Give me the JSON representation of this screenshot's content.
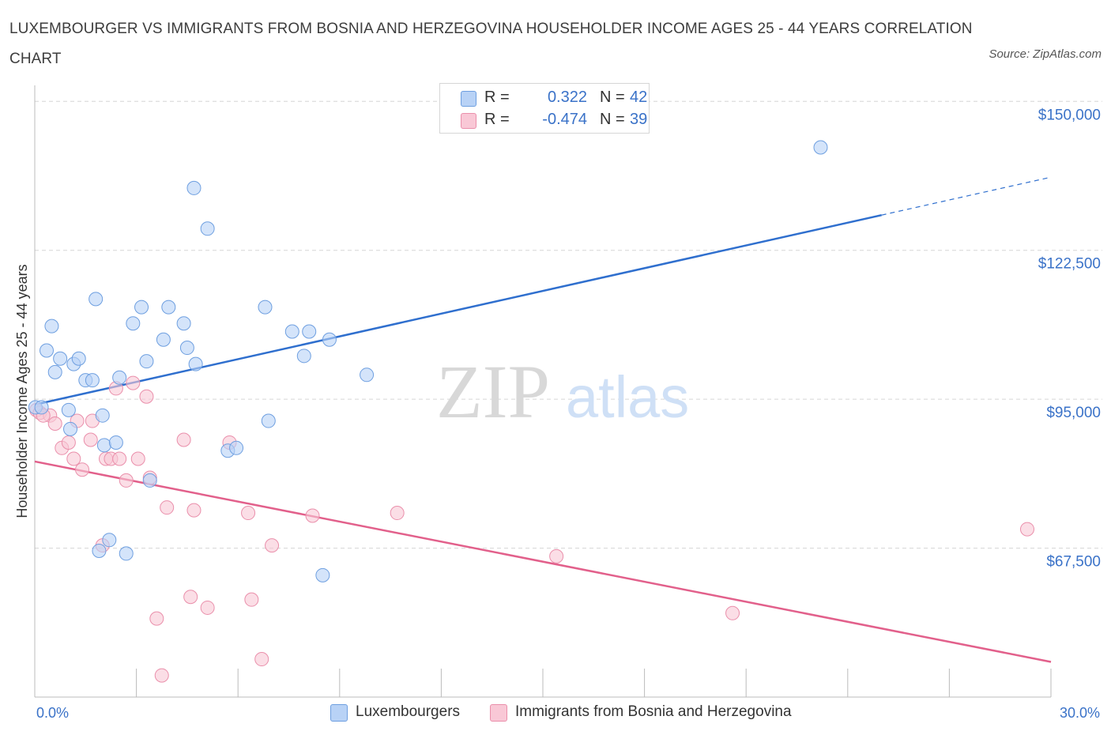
{
  "title": "LUXEMBOURGER VS IMMIGRANTS FROM BOSNIA AND HERZEGOVINA HOUSEHOLDER INCOME AGES 25 - 44 YEARS CORRELATION CHART",
  "source": "Source: ZipAtlas.com",
  "watermark": {
    "zip": "ZIP",
    "atlas": "atlas"
  },
  "legend_top": [
    {
      "r_label": "R =",
      "r_value": "0.322",
      "n_label": "N =",
      "n_value": "42"
    },
    {
      "r_label": "R =",
      "r_value": "-0.474",
      "n_label": "N =",
      "n_value": "39"
    }
  ],
  "legend_bottom": [
    {
      "label": "Luxembourgers"
    },
    {
      "label": "Immigrants from Bosnia and Herzegovina"
    }
  ],
  "colors": {
    "blue_fill": "#b8d2f6",
    "blue_stroke": "#6e9fe0",
    "blue_line": "#2f6fce",
    "pink_fill": "#f9c8d6",
    "pink_stroke": "#ea8fab",
    "pink_line": "#e2608b",
    "grid": "#d5d5d5",
    "axis": "#bbbbbb",
    "tick_text": "#3a72c8"
  },
  "chart_data": {
    "type": "scatter",
    "title": "LUXEMBOURGER VS IMMIGRANTS FROM BOSNIA AND HERZEGOVINA HOUSEHOLDER INCOME AGES 25 - 44 YEARS CORRELATION CHART",
    "xlabel": "",
    "ylabel": "Householder Income Ages 25 - 44 years",
    "x_tick_labels": [
      "0.0%",
      "30.0%"
    ],
    "y_tick_labels": [
      "$67,500",
      "$95,000",
      "$122,500",
      "$150,000"
    ],
    "y_ticks": [
      67500,
      95000,
      122500,
      150000
    ],
    "xlim": [
      0,
      30
    ],
    "ylim": [
      40000,
      151500
    ],
    "grid": true,
    "legend_position": "top-center",
    "series": [
      {
        "name": "Luxembourgers",
        "color": "#6e9fe0",
        "points": [
          [
            0.02,
            93500
          ],
          [
            0.2,
            93500
          ],
          [
            0.35,
            104000
          ],
          [
            0.5,
            108500
          ],
          [
            0.6,
            100000
          ],
          [
            0.75,
            102500
          ],
          [
            1.0,
            93000
          ],
          [
            1.05,
            89500
          ],
          [
            1.15,
            101500
          ],
          [
            1.3,
            102500
          ],
          [
            1.5,
            98500
          ],
          [
            1.7,
            98500
          ],
          [
            2.0,
            92000
          ],
          [
            2.05,
            86500
          ],
          [
            1.9,
            67000
          ],
          [
            1.8,
            113500
          ],
          [
            2.2,
            69000
          ],
          [
            2.4,
            87000
          ],
          [
            2.5,
            99000
          ],
          [
            2.7,
            66500
          ],
          [
            2.9,
            109000
          ],
          [
            3.15,
            112000
          ],
          [
            3.3,
            102000
          ],
          [
            3.4,
            80000
          ],
          [
            3.8,
            106000
          ],
          [
            3.95,
            112000
          ],
          [
            4.4,
            109000
          ],
          [
            4.5,
            104500
          ],
          [
            4.7,
            134000
          ],
          [
            4.75,
            101500
          ],
          [
            5.1,
            126500
          ],
          [
            5.7,
            85500
          ],
          [
            5.95,
            86000
          ],
          [
            6.8,
            112000
          ],
          [
            6.9,
            91000
          ],
          [
            7.6,
            107500
          ],
          [
            8.1,
            107500
          ],
          [
            7.95,
            103000
          ],
          [
            8.7,
            106000
          ],
          [
            8.5,
            62500
          ],
          [
            9.8,
            99500
          ],
          [
            23.2,
            141500
          ]
        ]
      },
      {
        "name": "Immigrants from Bosnia and Herzegovina",
        "color": "#ea8fab",
        "points": [
          [
            0.05,
            93000
          ],
          [
            0.15,
            92500
          ],
          [
            0.45,
            92000
          ],
          [
            0.6,
            90500
          ],
          [
            0.8,
            86000
          ],
          [
            1.0,
            87000
          ],
          [
            1.15,
            84000
          ],
          [
            1.25,
            91000
          ],
          [
            1.4,
            82000
          ],
          [
            1.65,
            87500
          ],
          [
            1.7,
            91000
          ],
          [
            2.0,
            68000
          ],
          [
            2.1,
            84000
          ],
          [
            2.25,
            84000
          ],
          [
            2.4,
            97000
          ],
          [
            2.5,
            84000
          ],
          [
            2.7,
            80000
          ],
          [
            2.9,
            98000
          ],
          [
            3.05,
            84000
          ],
          [
            3.3,
            95500
          ],
          [
            3.4,
            80500
          ],
          [
            3.6,
            54500
          ],
          [
            3.75,
            44000
          ],
          [
            3.9,
            75000
          ],
          [
            4.4,
            87500
          ],
          [
            4.6,
            58500
          ],
          [
            4.7,
            74500
          ],
          [
            5.1,
            56500
          ],
          [
            5.75,
            87000
          ],
          [
            6.3,
            74000
          ],
          [
            6.4,
            58000
          ],
          [
            6.7,
            47000
          ],
          [
            7.0,
            68000
          ],
          [
            8.2,
            73500
          ],
          [
            10.7,
            74000
          ],
          [
            15.4,
            66000
          ],
          [
            20.6,
            55500
          ],
          [
            29.3,
            71000
          ],
          [
            0.25,
            92000
          ]
        ]
      }
    ],
    "trendlines": [
      {
        "series": "Luxembourgers",
        "x": [
          0,
          25
        ],
        "y": [
          94000,
          129000
        ],
        "dashed_extension_to_x": 30,
        "dashed_extension_y": 136000
      },
      {
        "series": "Immigrants from Bosnia and Herzegovina",
        "x": [
          0,
          30
        ],
        "y": [
          83500,
          46500
        ]
      }
    ]
  }
}
